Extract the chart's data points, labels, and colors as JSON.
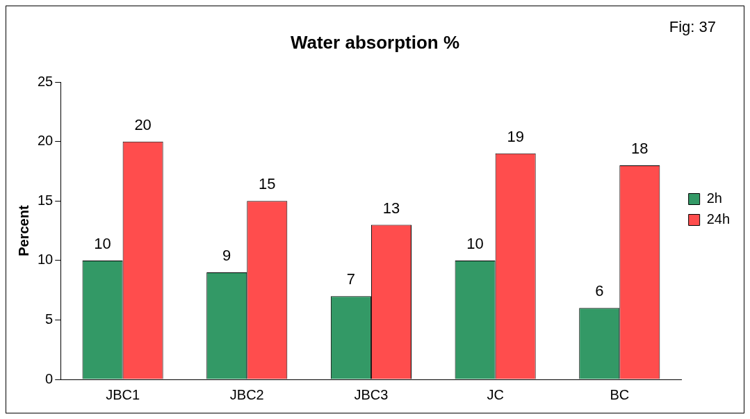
{
  "chart_data": {
    "type": "bar",
    "title": "Water absorption %",
    "ylabel": "Percent",
    "annotations": [
      "Fig: 37"
    ],
    "categories": [
      "JBC1",
      "JBC2",
      "JBC3",
      "JC",
      "BC"
    ],
    "series": [
      {
        "name": "2h",
        "color": "#339966",
        "values": [
          10,
          9,
          7,
          10,
          6
        ]
      },
      {
        "name": "24h",
        "color": "#ff4d4d",
        "values": [
          20,
          15,
          13,
          19,
          18
        ]
      }
    ],
    "ylim": [
      0,
      25
    ],
    "yticks": [
      0,
      5,
      10,
      15,
      20,
      25
    ],
    "grid": false,
    "legend": "right",
    "data_labels": true
  }
}
